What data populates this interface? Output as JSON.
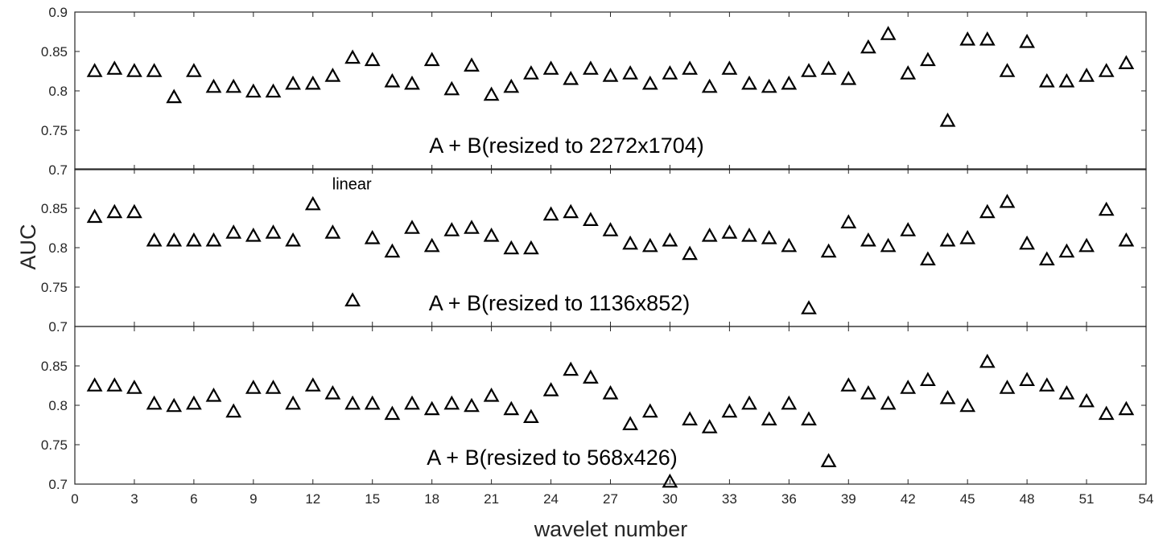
{
  "chart_data": {
    "type": "scatter",
    "marker": "triangle",
    "marker_color": "#000000",
    "xlabel": "wavelet number",
    "ylabel": "AUC",
    "xlim": [
      0,
      54
    ],
    "xticks": [
      0,
      3,
      6,
      9,
      12,
      15,
      18,
      21,
      24,
      27,
      30,
      33,
      36,
      39,
      42,
      45,
      48,
      51,
      54
    ],
    "x": [
      1,
      2,
      3,
      4,
      5,
      6,
      7,
      8,
      9,
      10,
      11,
      12,
      13,
      14,
      15,
      16,
      17,
      18,
      19,
      20,
      21,
      22,
      23,
      24,
      25,
      26,
      27,
      28,
      29,
      30,
      31,
      32,
      33,
      34,
      35,
      36,
      37,
      38,
      39,
      40,
      41,
      42,
      43,
      44,
      45,
      46,
      47,
      48,
      49,
      50,
      51,
      52,
      53
    ],
    "panels": [
      {
        "label": "A + B(resized to 2272x1704)",
        "ylim": [
          0.7,
          0.9
        ],
        "yticks": [
          "0.7",
          "0.75",
          "0.8",
          "0.85",
          "0.9"
        ],
        "values": [
          0.825,
          0.828,
          0.825,
          0.825,
          0.792,
          0.825,
          0.805,
          0.805,
          0.799,
          0.799,
          0.809,
          0.809,
          0.819,
          0.842,
          0.839,
          0.812,
          0.809,
          0.839,
          0.802,
          0.832,
          0.795,
          0.805,
          0.822,
          0.828,
          0.815,
          0.828,
          0.819,
          0.822,
          0.809,
          0.822,
          0.828,
          0.805,
          0.828,
          0.809,
          0.805,
          0.809,
          0.825,
          0.828,
          0.815,
          0.855,
          0.872,
          0.822,
          0.839,
          0.762,
          0.865,
          0.865,
          0.825,
          0.862,
          0.812,
          0.812,
          0.819,
          0.825,
          0.835
        ]
      },
      {
        "label": "A + B(resized to 1136x852)",
        "ylim": [
          0.7,
          0.9
        ],
        "yticks": [
          "0.7",
          "0.75",
          "0.8",
          "0.85"
        ],
        "values": [
          0.839,
          0.845,
          0.845,
          0.809,
          0.809,
          0.809,
          0.809,
          0.819,
          0.815,
          0.819,
          0.809,
          0.855,
          0.819,
          0.733,
          0.812,
          0.795,
          0.825,
          0.802,
          0.822,
          0.825,
          0.815,
          0.799,
          0.799,
          0.842,
          0.845,
          0.835,
          0.822,
          0.805,
          0.802,
          0.809,
          0.792,
          0.815,
          0.819,
          0.815,
          0.812,
          0.802,
          0.723,
          0.795,
          0.832,
          0.809,
          0.802,
          0.822,
          0.785,
          0.809,
          0.812,
          0.845,
          0.858,
          0.805,
          0.785,
          0.795,
          0.802,
          0.848,
          0.809
        ],
        "annotations": [
          {
            "x": 12,
            "y": 0.885,
            "text": "linear"
          }
        ]
      },
      {
        "label": "A + B(resized to 568x426)",
        "ylim": [
          0.7,
          0.9
        ],
        "yticks": [
          "0.7",
          "0.75",
          "0.8",
          "0.85"
        ],
        "values": [
          0.825,
          0.825,
          0.822,
          0.802,
          0.799,
          0.802,
          0.812,
          0.792,
          0.822,
          0.822,
          0.802,
          0.825,
          0.815,
          0.802,
          0.802,
          0.789,
          0.802,
          0.795,
          0.802,
          0.799,
          0.812,
          0.795,
          0.785,
          0.819,
          0.845,
          0.835,
          0.815,
          0.776,
          0.792,
          0.703,
          0.782,
          0.772,
          0.792,
          0.802,
          0.782,
          0.802,
          0.782,
          0.729,
          0.825,
          0.815,
          0.802,
          0.822,
          0.832,
          0.809,
          0.799,
          0.855,
          0.822,
          0.832,
          0.825,
          0.815,
          0.805,
          0.789,
          0.795
        ]
      }
    ]
  }
}
